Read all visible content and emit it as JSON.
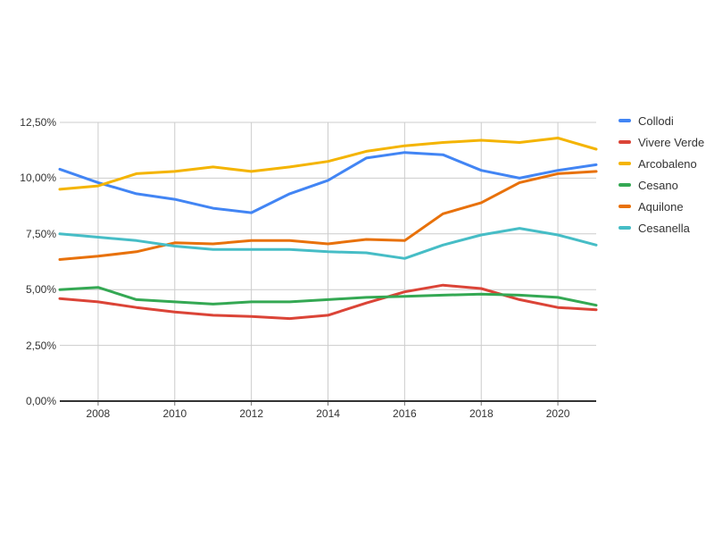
{
  "chart_data": {
    "type": "line",
    "title": "",
    "xlabel": "",
    "ylabel": "",
    "x": [
      2007,
      2008,
      2009,
      2010,
      2011,
      2012,
      2013,
      2014,
      2015,
      2016,
      2017,
      2018,
      2019,
      2020,
      2021
    ],
    "xlim": [
      2007,
      2021
    ],
    "ylim": [
      0,
      12.5
    ],
    "grid": true,
    "legend_position": "right",
    "value_format": "percent, Italian decimal comma",
    "x_tick_values": [
      2008,
      2010,
      2012,
      2014,
      2016,
      2018,
      2020
    ],
    "x_tick_labels": [
      "2008",
      "2010",
      "2012",
      "2014",
      "2016",
      "2018",
      "2020"
    ],
    "y_tick_values": [
      0,
      2.5,
      5,
      7.5,
      10,
      12.5
    ],
    "y_tick_labels": [
      "0,00%",
      "2,50%",
      "5,00%",
      "7,50%",
      "10,00%",
      "12,50%"
    ],
    "series": [
      {
        "name": "Collodi",
        "color": "#4285F4",
        "values": [
          10.4,
          9.8,
          9.3,
          9.05,
          8.65,
          8.45,
          9.3,
          9.9,
          10.9,
          11.15,
          11.05,
          10.35,
          10.0,
          10.35,
          10.6
        ]
      },
      {
        "name": "Vivere Verde",
        "color": "#DB4437",
        "values": [
          4.6,
          4.45,
          4.2,
          4.0,
          3.85,
          3.8,
          3.7,
          3.85,
          4.4,
          4.9,
          5.2,
          5.05,
          4.55,
          4.2,
          4.1
        ]
      },
      {
        "name": "Arcobaleno",
        "color": "#F4B400",
        "values": [
          9.5,
          9.65,
          10.2,
          10.3,
          10.5,
          10.3,
          10.5,
          10.75,
          11.2,
          11.45,
          11.6,
          11.7,
          11.6,
          11.8,
          11.3
        ]
      },
      {
        "name": "Cesano",
        "color": "#34A853",
        "values": [
          5.0,
          5.1,
          4.55,
          4.45,
          4.35,
          4.45,
          4.45,
          4.55,
          4.65,
          4.7,
          4.75,
          4.8,
          4.75,
          4.65,
          4.3
        ]
      },
      {
        "name": "Aquilone",
        "color": "#E8710A",
        "values": [
          6.35,
          6.5,
          6.7,
          7.1,
          7.05,
          7.2,
          7.2,
          7.05,
          7.25,
          7.2,
          8.4,
          8.9,
          9.8,
          10.2,
          10.3
        ]
      },
      {
        "name": "Cesanella",
        "color": "#46BDC6",
        "values": [
          7.5,
          7.35,
          7.2,
          6.95,
          6.8,
          6.8,
          6.8,
          6.7,
          6.65,
          6.4,
          7.0,
          7.45,
          7.75,
          7.45,
          7.0
        ]
      }
    ],
    "grid_color": "#cccccc",
    "axis_color": "#333333"
  }
}
